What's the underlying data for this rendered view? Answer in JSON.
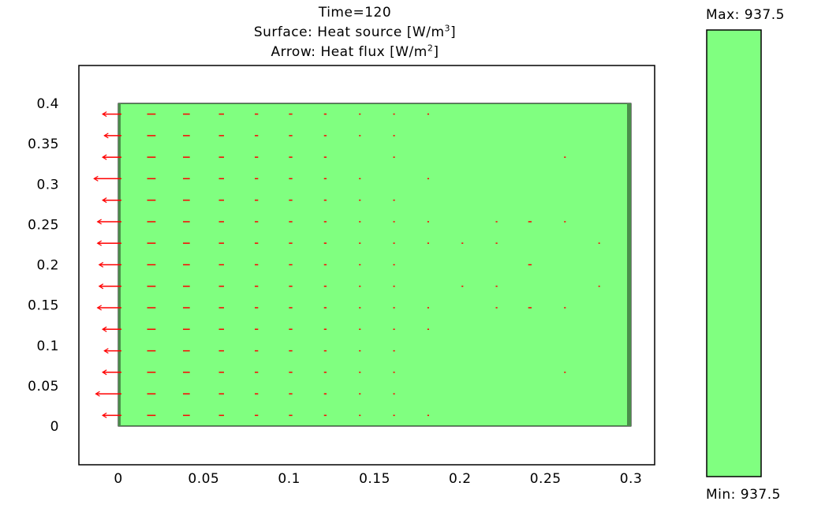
{
  "titles": {
    "time": "Time=120",
    "surface_prefix": "Surface: Heat source [W/m",
    "surface_sup": "3",
    "surface_suffix": "]",
    "arrow_prefix": "Arrow: Heat flux [W/m",
    "arrow_sup": "2",
    "arrow_suffix": "]"
  },
  "colorbar": {
    "max_label": "Max: 937.5",
    "min_label": "Min: 937.5",
    "color": "#80ff80"
  },
  "colors": {
    "surface": "#80ff80",
    "arrow": "#ff0000",
    "frame": "#000000"
  },
  "chart_data": {
    "type": "surface-arrow",
    "title": "Time=120",
    "surface_quantity": "Heat source [W/m3]",
    "arrow_quantity": "Heat flux [W/m2]",
    "surface_value": 937.5,
    "xlim": [
      0,
      0.3
    ],
    "ylim": [
      0,
      0.4
    ],
    "x_ticks": [
      "0",
      "0.05",
      "0.1",
      "0.15",
      "0.2",
      "0.25",
      "0.3"
    ],
    "x_tick_values": [
      0,
      0.05,
      0.1,
      0.15,
      0.2,
      0.25,
      0.3
    ],
    "y_ticks": [
      "0",
      "0.05",
      "0.1",
      "0.15",
      "0.2",
      "0.25",
      "0.3",
      "0.35",
      "0.4"
    ],
    "y_tick_values": [
      0,
      0.05,
      0.1,
      0.15,
      0.2,
      0.25,
      0.3,
      0.35,
      0.4
    ],
    "domain": {
      "x": [
        0,
        0.3
      ],
      "y": [
        0,
        0.4
      ]
    },
    "arrow_grid": {
      "x": [
        0,
        0.02,
        0.04,
        0.06,
        0.08,
        0.1,
        0.12,
        0.14,
        0.16,
        0.18,
        0.2,
        0.22,
        0.24,
        0.26,
        0.28
      ],
      "y": [
        0.3867,
        0.36,
        0.3333,
        0.3067,
        0.28,
        0.2533,
        0.2267,
        0.2,
        0.1733,
        0.1467,
        0.12,
        0.0933,
        0.0667,
        0.04,
        0.0133
      ]
    },
    "arrows": [
      {
        "x": 0,
        "y": 0.3867,
        "length": 0.011
      },
      {
        "x": 0,
        "y": 0.36,
        "length": 0.01
      },
      {
        "x": 0,
        "y": 0.3333,
        "length": 0.011
      },
      {
        "x": 0,
        "y": 0.3067,
        "length": 0.016
      },
      {
        "x": 0,
        "y": 0.28,
        "length": 0.011
      },
      {
        "x": 0,
        "y": 0.2533,
        "length": 0.014
      },
      {
        "x": 0,
        "y": 0.2267,
        "length": 0.014
      },
      {
        "x": 0,
        "y": 0.2,
        "length": 0.013
      },
      {
        "x": 0,
        "y": 0.1733,
        "length": 0.013
      },
      {
        "x": 0,
        "y": 0.1467,
        "length": 0.014
      },
      {
        "x": 0,
        "y": 0.12,
        "length": 0.011
      },
      {
        "x": 0,
        "y": 0.0933,
        "length": 0.01
      },
      {
        "x": 0,
        "y": 0.0667,
        "length": 0.011
      },
      {
        "x": 0,
        "y": 0.04,
        "length": 0.015
      },
      {
        "x": 0,
        "y": 0.0133,
        "length": 0.011
      }
    ],
    "interior_arrows": [
      {
        "x": 0.02,
        "y": [
          0.3867,
          0.36,
          0.3333,
          0.3067,
          0.28,
          0.2533,
          0.2267,
          0.2,
          0.1733,
          0.1467,
          0.12,
          0.0933,
          0.0667,
          0.04,
          0.0133
        ],
        "length": 0.005
      },
      {
        "x": 0.04,
        "y": [
          0.3867,
          0.36,
          0.3333,
          0.3067,
          0.28,
          0.2533,
          0.2267,
          0.2,
          0.1733,
          0.1467,
          0.12,
          0.0933,
          0.0667,
          0.04,
          0.0133
        ],
        "length": 0.004
      },
      {
        "x": 0.06,
        "y": [
          0.3867,
          0.36,
          0.3333,
          0.3067,
          0.28,
          0.2533,
          0.2267,
          0.2,
          0.1733,
          0.1467,
          0.12,
          0.0933,
          0.0667,
          0.04,
          0.0133
        ],
        "length": 0.003
      },
      {
        "x": 0.08,
        "y": [
          0.3867,
          0.36,
          0.3333,
          0.3067,
          0.28,
          0.2533,
          0.2267,
          0.2,
          0.1733,
          0.1467,
          0.12,
          0.0933,
          0.0667,
          0.04,
          0.0133
        ],
        "length": 0.002
      },
      {
        "x": 0.1,
        "y": [
          0.3867,
          0.36,
          0.3333,
          0.3067,
          0.28,
          0.2533,
          0.2267,
          0.2,
          0.1733,
          0.1467,
          0.12,
          0.0933,
          0.0667,
          0.04,
          0.0133
        ],
        "length": 0.002
      },
      {
        "x": 0.12,
        "y": [
          0.3867,
          0.36,
          0.3333,
          0.3067,
          0.28,
          0.2533,
          0.2267,
          0.2,
          0.1733,
          0.1467,
          0.12,
          0.0933,
          0.0667,
          0.04,
          0.0133
        ],
        "length": 0.0015
      },
      {
        "x": 0.14,
        "y": [
          0.3867,
          0.36,
          0.3067,
          0.28,
          0.2533,
          0.2267,
          0.2,
          0.1733,
          0.1467,
          0.12,
          0.0933,
          0.0667,
          0.04,
          0.0133
        ],
        "length": 0.001
      },
      {
        "x": 0.16,
        "y": [
          0.3867,
          0.36,
          0.3333,
          0.28,
          0.2533,
          0.2267,
          0.2,
          0.1733,
          0.1467,
          0.12,
          0.0933,
          0.0667,
          0.04,
          0.0133
        ],
        "length": 0.001
      },
      {
        "x": 0.18,
        "y": [
          0.3867,
          0.3067,
          0.2533,
          0.2267,
          0.1467,
          0.12,
          0.0133
        ],
        "length": 0.001
      },
      {
        "x": 0.2,
        "y": [
          0.2267,
          0.1733
        ],
        "length": 0.001
      },
      {
        "x": 0.22,
        "y": [
          0.2533,
          0.2267,
          0.1733,
          0.1467
        ],
        "length": 0.001
      },
      {
        "x": 0.24,
        "y": [
          0.2533,
          0.2,
          0.1467
        ],
        "length": 0.002
      },
      {
        "x": 0.26,
        "y": [
          0.3333,
          0.2533,
          0.1467,
          0.0667
        ],
        "length": 0.001
      },
      {
        "x": 0.28,
        "y": [
          0.2267,
          0.1733
        ],
        "length": 0.0008
      }
    ]
  }
}
